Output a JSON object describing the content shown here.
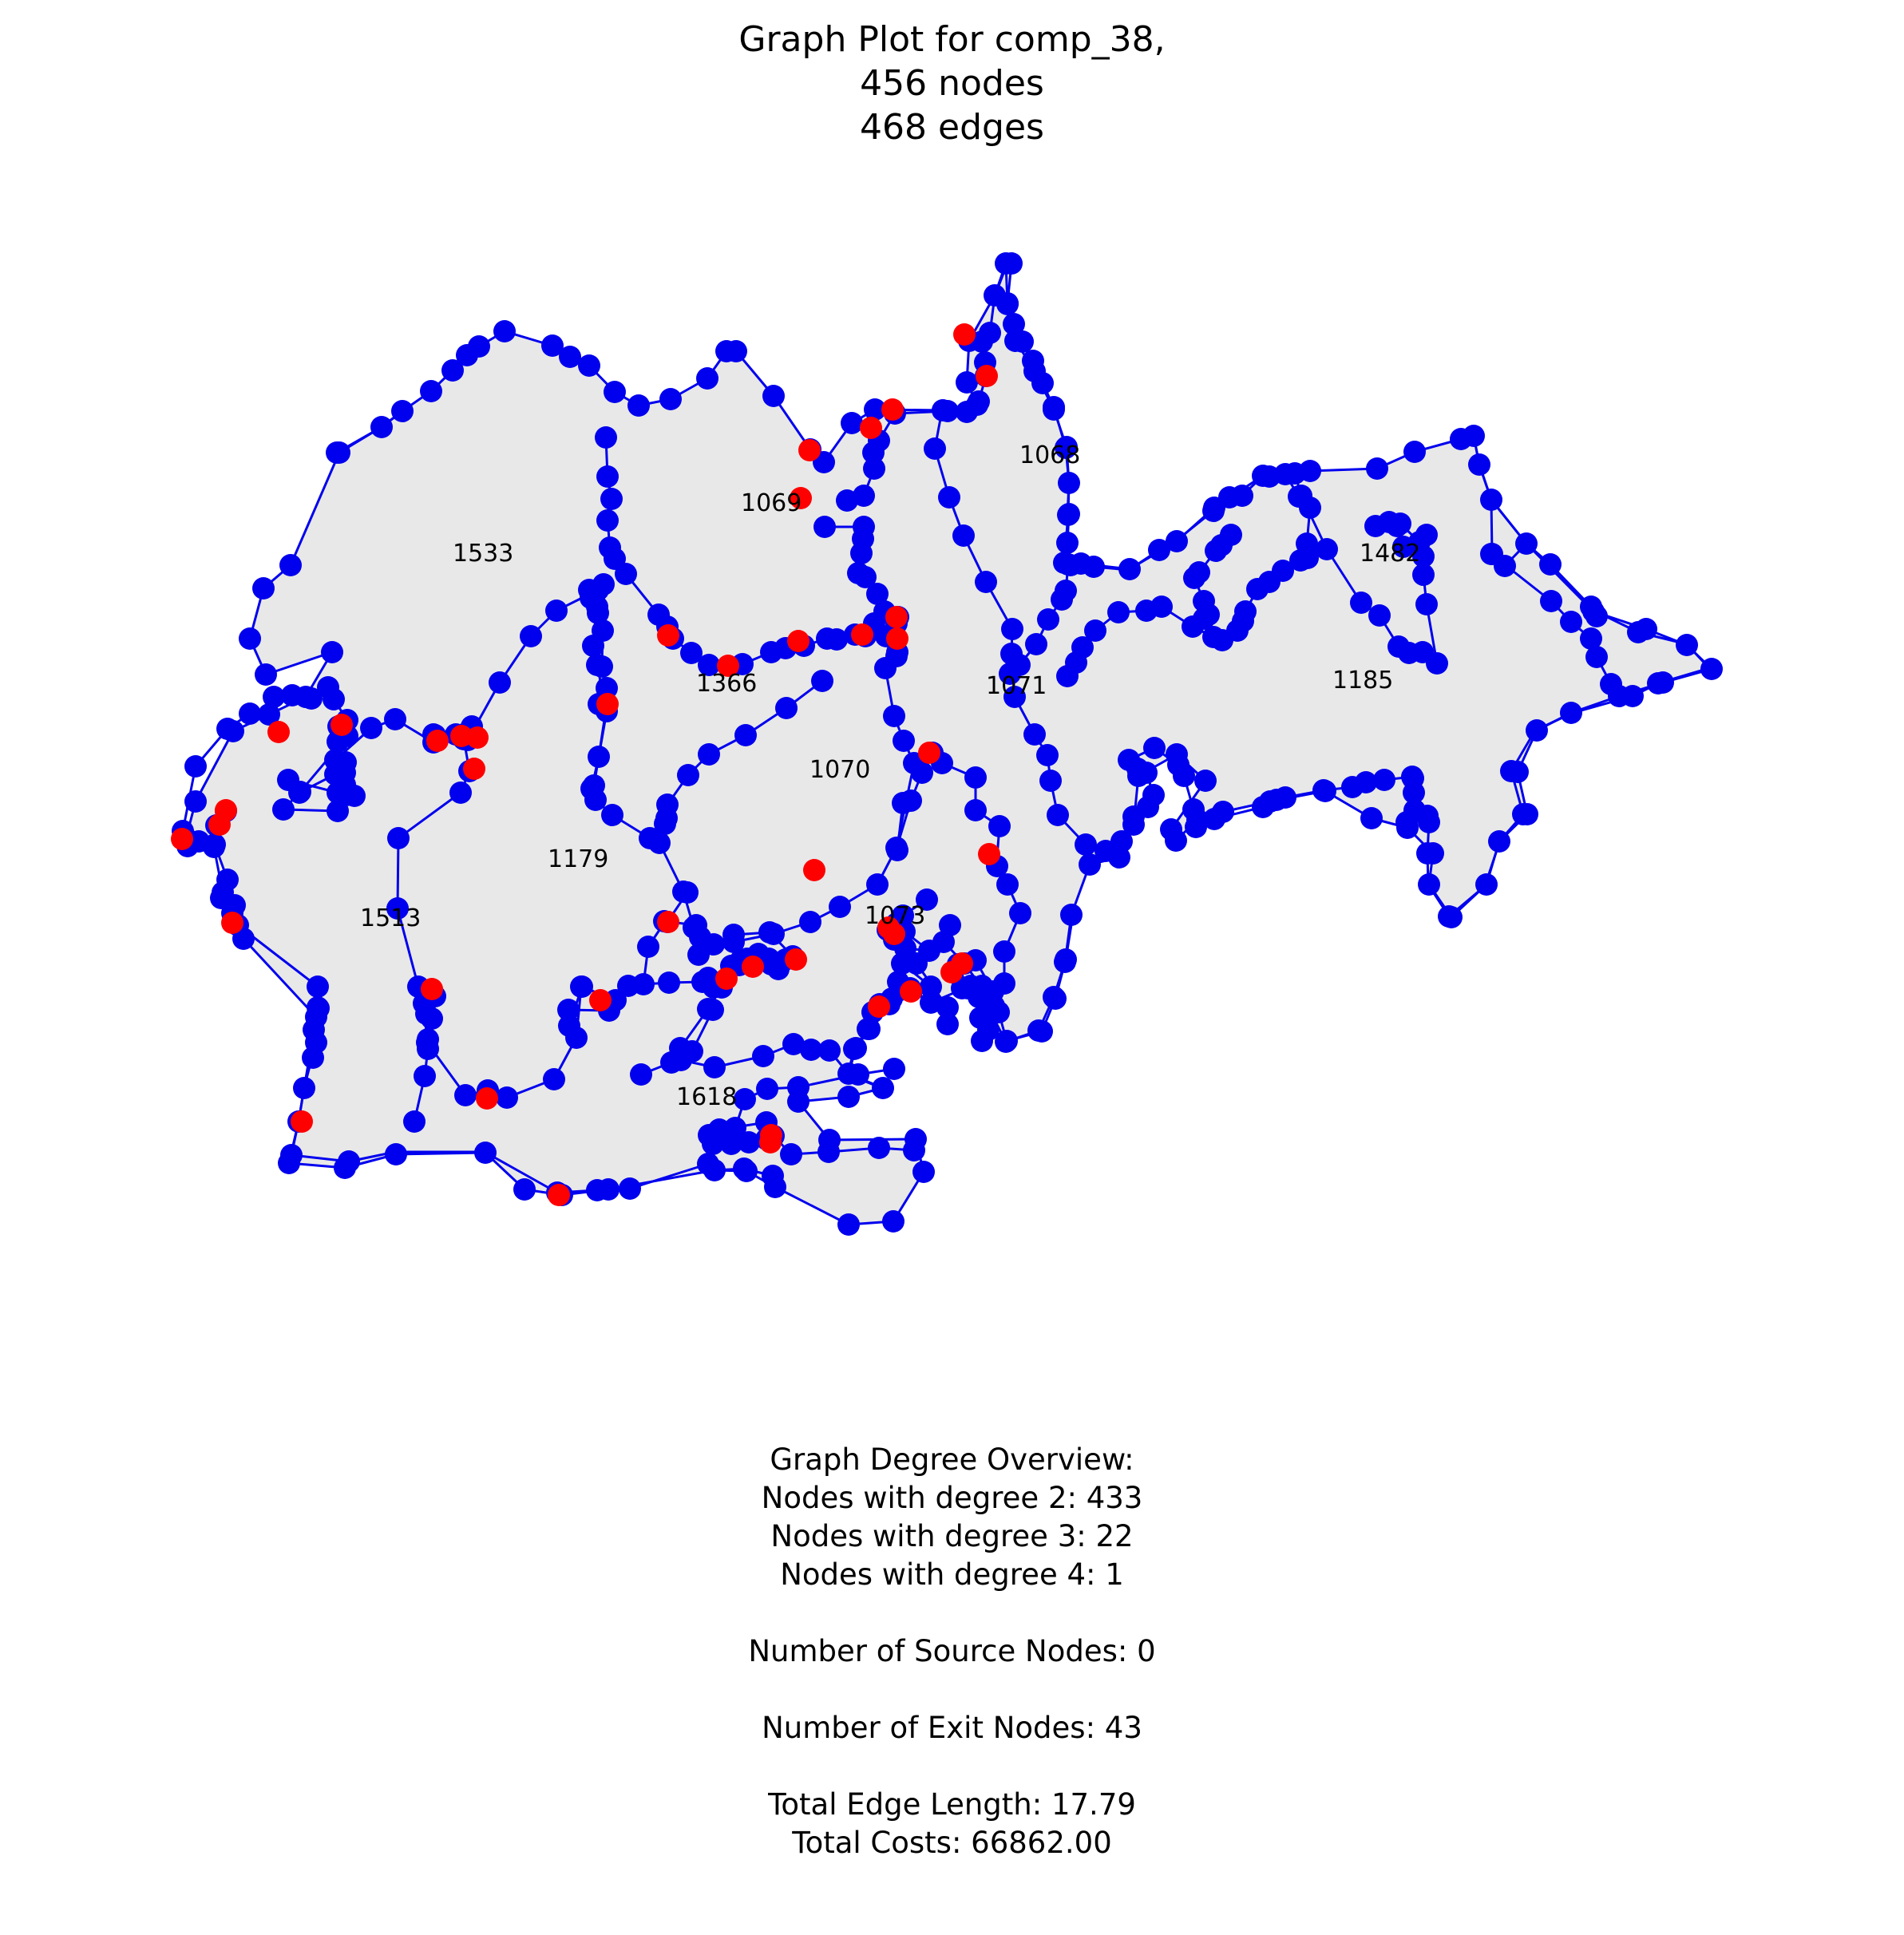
{
  "title": {
    "line1": "Graph Plot for comp_38,",
    "line2": "456 nodes",
    "line3": "468 edges"
  },
  "regions": [
    "1533",
    "1069",
    "1068",
    "1482",
    "1366",
    "1071",
    "1185",
    "1070",
    "1179",
    "1513",
    "1073",
    "1618"
  ],
  "colors": {
    "node": "#0000ee",
    "exit_node": "#ff0000",
    "edge": "#0000ee",
    "region_fill": "#e8e8e8"
  },
  "stats": {
    "heading": "Graph Degree Overview:",
    "degree2": "Nodes with degree 2: 433",
    "degree3": "Nodes with degree 3: 22",
    "degree4": "Nodes with degree 4: 1",
    "source_nodes": "Number of Source Nodes: 0",
    "exit_nodes": "Number of Exit Nodes: 43",
    "edge_length": "Total Edge Length: 17.79",
    "costs": "Total Costs: 66862.00"
  }
}
